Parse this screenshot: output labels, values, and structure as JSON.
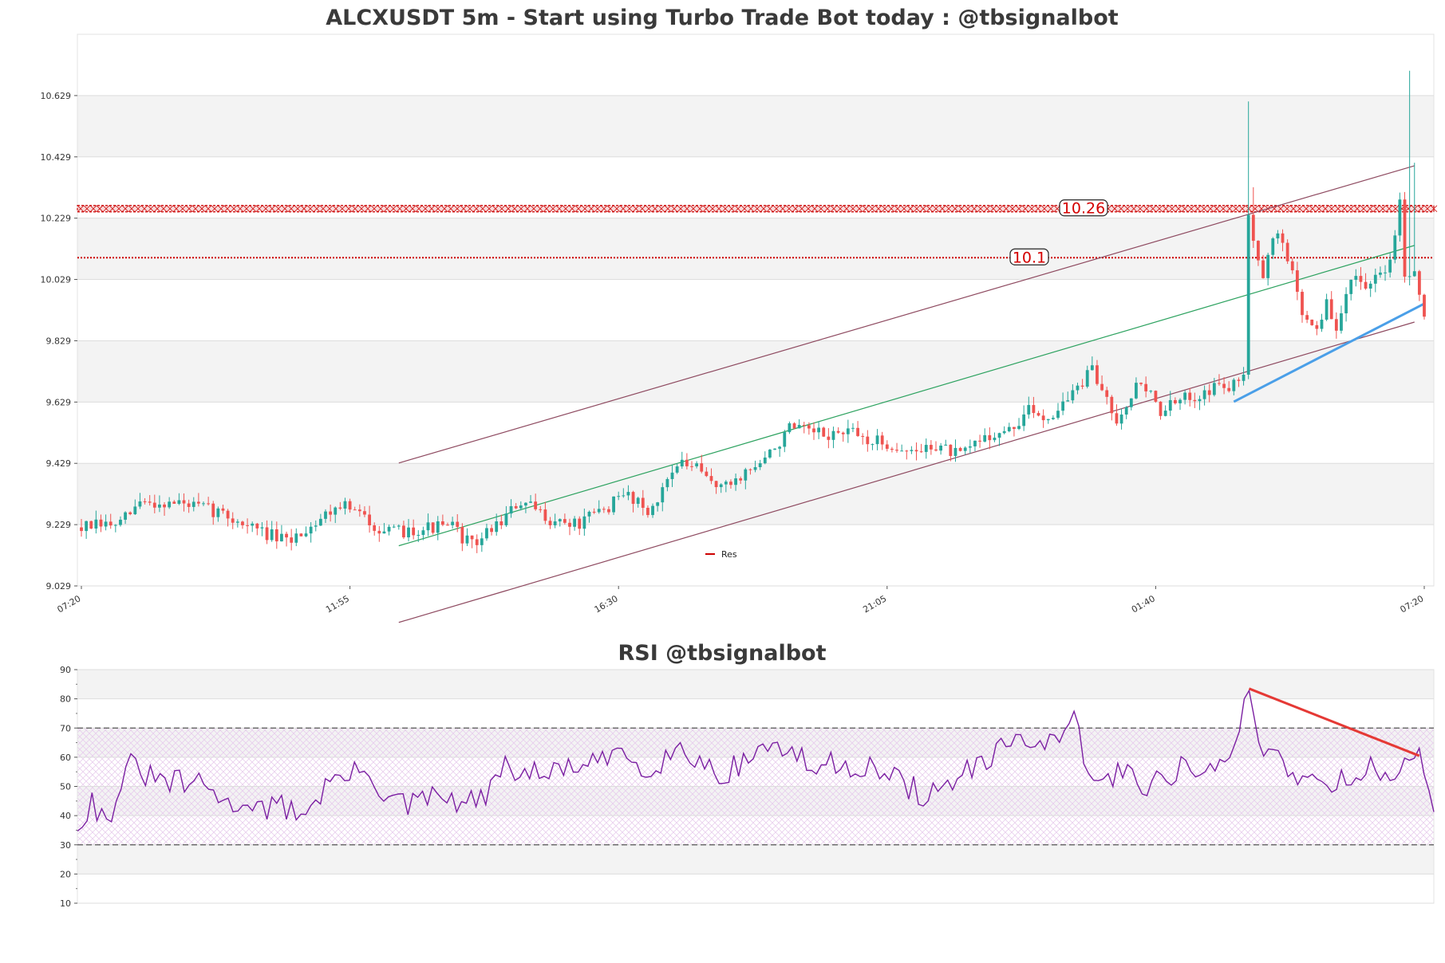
{
  "colors": {
    "up": "#26a69a",
    "down": "#ef5350",
    "resistance": "#cc0000",
    "channel": "#8e4a60",
    "midline": "#2ca25f",
    "support_trend": "#4a9fe8",
    "rsi_line": "#7b1fa2",
    "rsi_trend": "#e53935",
    "band": "#f3f3f3",
    "grid": "#dddddd"
  },
  "chart_data": [
    {
      "type": "candlestick",
      "title": "ALCXUSDT 5m - Start using Turbo Trade Bot today : @tbsignalbot",
      "ylim": [
        9.029,
        10.829
      ],
      "y_ticks": [
        "9.029",
        "9.229",
        "9.429",
        "9.629",
        "9.829",
        "10.029",
        "10.229",
        "10.429",
        "10.629"
      ],
      "x_ticks": [
        {
          "label": "07:20",
          "index": 0
        },
        {
          "label": "11:55",
          "index": 55
        },
        {
          "label": "16:30",
          "index": 110
        },
        {
          "label": "21:05",
          "index": 165
        },
        {
          "label": "01:40",
          "index": 220
        },
        {
          "label": "07:20",
          "index": 275
        }
      ],
      "n_candles": 276,
      "legend": [
        {
          "name": "Res",
          "color": "#cc0000"
        }
      ],
      "levels": [
        {
          "label": "10.26",
          "value": 10.26,
          "style": "hatched"
        },
        {
          "label": "10.1",
          "value": 10.1,
          "style": "dotted"
        }
      ],
      "channel": {
        "upper": {
          "from": [
            65,
            9.43
          ],
          "to": [
            273,
            10.4
          ]
        },
        "lower": {
          "from": [
            65,
            8.91
          ],
          "to": [
            273,
            9.89
          ]
        },
        "mid": {
          "from": [
            65,
            9.16
          ],
          "to": [
            273,
            10.14
          ]
        }
      },
      "support_trend": {
        "from": [
          236,
          9.63
        ],
        "to": [
          275,
          9.95
        ]
      },
      "anchors": [
        [
          0,
          9.22
        ],
        [
          8,
          9.23
        ],
        [
          12,
          9.3
        ],
        [
          20,
          9.3
        ],
        [
          28,
          9.27
        ],
        [
          35,
          9.22
        ],
        [
          42,
          9.17
        ],
        [
          48,
          9.24
        ],
        [
          53,
          9.3
        ],
        [
          58,
          9.25
        ],
        [
          63,
          9.2
        ],
        [
          70,
          9.22
        ],
        [
          76,
          9.22
        ],
        [
          80,
          9.16
        ],
        [
          85,
          9.23
        ],
        [
          90,
          9.3
        ],
        [
          97,
          9.24
        ],
        [
          102,
          9.23
        ],
        [
          108,
          9.29
        ],
        [
          112,
          9.33
        ],
        [
          117,
          9.27
        ],
        [
          121,
          9.42
        ],
        [
          125,
          9.42
        ],
        [
          128,
          9.38
        ],
        [
          132,
          9.35
        ],
        [
          135,
          9.39
        ],
        [
          140,
          9.44
        ],
        [
          145,
          9.54
        ],
        [
          152,
          9.52
        ],
        [
          157,
          9.53
        ],
        [
          162,
          9.5
        ],
        [
          166,
          9.49
        ],
        [
          170,
          9.46
        ],
        [
          175,
          9.49
        ],
        [
          180,
          9.45
        ],
        [
          185,
          9.52
        ],
        [
          190,
          9.53
        ],
        [
          194,
          9.6
        ],
        [
          198,
          9.58
        ],
        [
          202,
          9.64
        ],
        [
          207,
          9.73
        ],
        [
          212,
          9.58
        ],
        [
          217,
          9.7
        ],
        [
          221,
          9.6
        ],
        [
          225,
          9.63
        ],
        [
          229,
          9.66
        ],
        [
          233,
          9.68
        ],
        [
          236,
          9.68
        ],
        [
          238,
          9.72
        ],
        [
          239,
          10.22
        ],
        [
          242,
          10.05
        ],
        [
          245,
          10.19
        ],
        [
          248,
          10.05
        ],
        [
          250,
          9.92
        ],
        [
          253,
          9.87
        ],
        [
          255,
          9.95
        ],
        [
          257,
          9.85
        ],
        [
          260,
          10.05
        ],
        [
          263,
          9.98
        ],
        [
          266,
          10.05
        ],
        [
          268,
          10.08
        ],
        [
          270,
          10.31
        ],
        [
          271,
          10.03
        ],
        [
          273,
          10.07
        ],
        [
          275,
          9.93
        ]
      ],
      "spikes": [
        {
          "index": 239,
          "high": 10.61
        },
        {
          "index": 240,
          "high": 10.33
        },
        {
          "index": 272,
          "high": 10.71
        },
        {
          "index": 273,
          "high": 10.41
        }
      ]
    },
    {
      "type": "line",
      "title": "RSI @tbsignalbot",
      "ylim": [
        10,
        90
      ],
      "y_ticks": [
        "10",
        "20",
        "30",
        "40",
        "50",
        "60",
        "70",
        "80",
        "90"
      ],
      "overbought": 70,
      "oversold": 30,
      "trend": {
        "from": [
          241,
          83.5
        ],
        "to": [
          276,
          60.5
        ]
      },
      "anchors": [
        [
          0,
          37
        ],
        [
          3,
          45
        ],
        [
          6,
          37
        ],
        [
          8,
          47
        ],
        [
          11,
          57
        ],
        [
          16,
          52
        ],
        [
          22,
          51
        ],
        [
          27,
          50
        ],
        [
          31,
          43
        ],
        [
          35,
          46
        ],
        [
          38,
          42
        ],
        [
          42,
          43
        ],
        [
          47,
          41
        ],
        [
          52,
          52
        ],
        [
          57,
          54
        ],
        [
          60,
          56
        ],
        [
          63,
          47
        ],
        [
          68,
          43
        ],
        [
          72,
          46
        ],
        [
          75,
          46
        ],
        [
          79,
          44
        ],
        [
          83,
          45
        ],
        [
          88,
          56
        ],
        [
          92,
          55
        ],
        [
          96,
          53
        ],
        [
          100,
          57
        ],
        [
          104,
          56
        ],
        [
          108,
          58
        ],
        [
          112,
          63
        ],
        [
          116,
          56
        ],
        [
          120,
          59
        ],
        [
          124,
          63
        ],
        [
          128,
          59
        ],
        [
          132,
          54
        ],
        [
          136,
          57
        ],
        [
          140,
          63
        ],
        [
          144,
          64
        ],
        [
          148,
          60
        ],
        [
          152,
          56
        ],
        [
          157,
          58
        ],
        [
          162,
          57
        ],
        [
          166,
          54
        ],
        [
          170,
          51
        ],
        [
          174,
          47
        ],
        [
          178,
          48
        ],
        [
          182,
          55
        ],
        [
          186,
          56
        ],
        [
          190,
          62
        ],
        [
          194,
          69
        ],
        [
          198,
          63
        ],
        [
          202,
          64
        ],
        [
          205,
          73
        ],
        [
          209,
          50
        ],
        [
          213,
          53
        ],
        [
          216,
          57
        ],
        [
          220,
          50
        ],
        [
          224,
          53
        ],
        [
          228,
          58
        ],
        [
          232,
          55
        ],
        [
          236,
          56
        ],
        [
          239,
          70
        ],
        [
          241,
          83
        ],
        [
          243,
          65
        ],
        [
          246,
          62
        ],
        [
          250,
          55
        ],
        [
          254,
          52
        ],
        [
          258,
          52
        ],
        [
          262,
          53
        ],
        [
          266,
          56
        ],
        [
          270,
          55
        ],
        [
          274,
          56
        ],
        [
          276,
          62
        ],
        [
          279,
          43
        ]
      ]
    }
  ]
}
